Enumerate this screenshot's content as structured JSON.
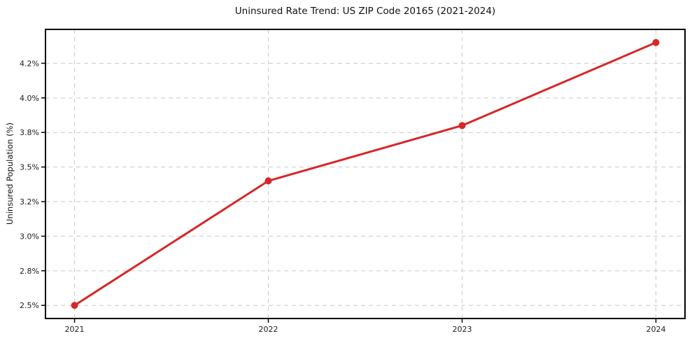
{
  "chart_data": {
    "type": "line",
    "title": "Uninsured Rate Trend: US ZIP Code 20165 (2021-2024)",
    "xlabel": "",
    "ylabel": "Uninsured Population (%)",
    "x": [
      2021,
      2022,
      2023,
      2024
    ],
    "xtick_labels": [
      "2021",
      "2022",
      "2023",
      "2024"
    ],
    "series": [
      {
        "name": "Uninsured population percent",
        "values": [
          2.5,
          3.4,
          3.8,
          4.4
        ]
      }
    ],
    "yticks": [
      2.5,
      2.75,
      3.0,
      3.25,
      3.5,
      3.75,
      4.0,
      4.25
    ],
    "ytick_labels": [
      "2.5%",
      "2.8%",
      "3.0%",
      "3.2%",
      "3.5%",
      "3.8%",
      "4.0%",
      "4.2%"
    ],
    "ylim": [
      2.405,
      4.495
    ],
    "xlim": [
      2020.85,
      2024.15
    ],
    "grid": "dashed-both-axes",
    "legend": "none",
    "line_color": "#d62728",
    "marker": "circle",
    "marker_color": "#d62728"
  },
  "style": {
    "background": "#ffffff",
    "grid_color": "#c9c9c9",
    "axis_color": "#000000",
    "text_color": "#1a1a1a"
  }
}
